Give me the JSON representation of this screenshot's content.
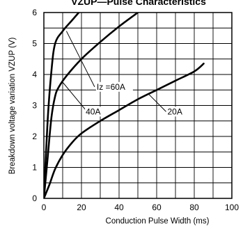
{
  "chart_data": {
    "type": "line",
    "title": "VZUP—Pulse  Characteristics",
    "xlabel": "Conduction  Pulse Width (ms)",
    "ylabel": "Breakdown voltage variation  VZUP (V)",
    "xlim": [
      0,
      100
    ],
    "ylim": [
      0,
      6
    ],
    "x_ticks": [
      0,
      20,
      40,
      60,
      80,
      100
    ],
    "y_ticks": [
      0,
      1,
      2,
      3,
      4,
      5,
      6
    ],
    "grid": true,
    "series": [
      {
        "name": "Iz =60A",
        "points": [
          [
            0,
            0
          ],
          [
            2,
            2.5
          ],
          [
            4,
            4.1
          ],
          [
            6,
            5.0
          ],
          [
            10,
            5.4
          ],
          [
            15,
            5.75
          ],
          [
            20,
            6.1
          ]
        ]
      },
      {
        "name": "40A",
        "points": [
          [
            0,
            0
          ],
          [
            2,
            1.3
          ],
          [
            4,
            2.6
          ],
          [
            6,
            3.3
          ],
          [
            8,
            3.6
          ],
          [
            12,
            3.95
          ],
          [
            20,
            4.5
          ],
          [
            30,
            5.05
          ],
          [
            40,
            5.55
          ],
          [
            50,
            6.0
          ]
        ]
      },
      {
        "name": "20A",
        "points": [
          [
            0,
            0
          ],
          [
            3,
            0.45
          ],
          [
            6,
            0.95
          ],
          [
            10,
            1.4
          ],
          [
            15,
            1.8
          ],
          [
            20,
            2.1
          ],
          [
            30,
            2.5
          ],
          [
            40,
            2.85
          ],
          [
            50,
            3.2
          ],
          [
            60,
            3.5
          ],
          [
            70,
            3.8
          ],
          [
            80,
            4.1
          ],
          [
            85,
            4.35
          ]
        ]
      }
    ]
  }
}
